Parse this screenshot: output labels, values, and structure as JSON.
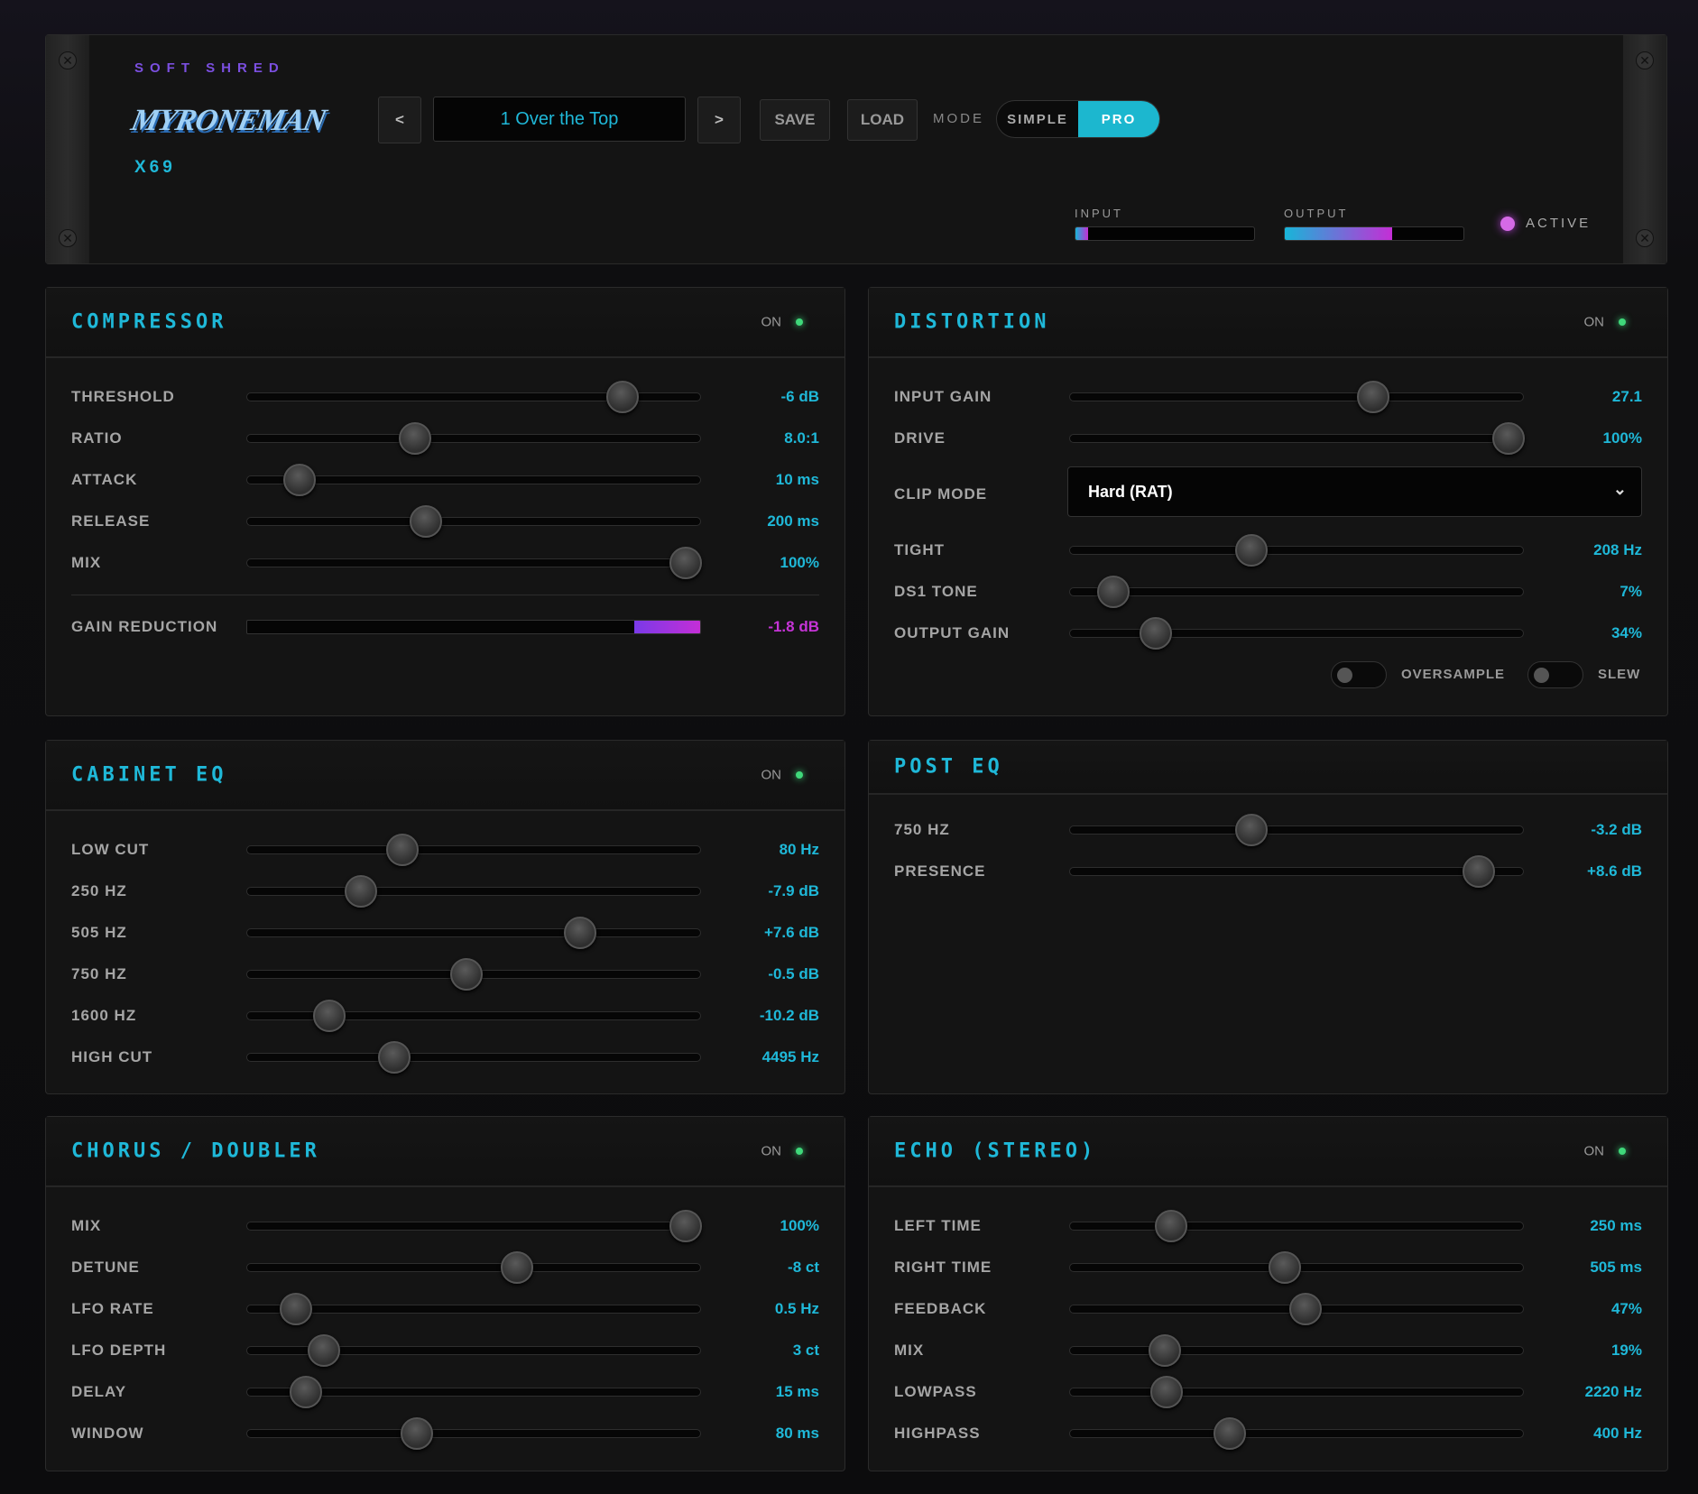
{
  "header": {
    "brand": "SOFT SHRED",
    "logo": "MYRONEMAN",
    "model": "X69",
    "prev_label": "<",
    "next_label": ">",
    "preset": "1 Over the Top",
    "save_label": "SAVE",
    "load_label": "LOAD",
    "mode_label": "MODE",
    "modes": [
      "SIMPLE",
      "PRO"
    ],
    "selected_mode": "PRO",
    "input_label": "INPUT",
    "output_label": "OUTPUT",
    "input_level": 0.07,
    "output_level": 0.6,
    "active_label": "ACTIVE",
    "colors": {
      "accent": "#1fb8d8",
      "brand": "#7b4fe0",
      "active": "#d56ae6",
      "on_led": "#3fd87a"
    }
  },
  "panels": [
    {
      "id": "compressor",
      "title": "COMPRESSOR",
      "on_label": "ON",
      "rows": [
        {
          "type": "slider",
          "label": "THRESHOLD",
          "value": "-6 dB",
          "pos": 0.85
        },
        {
          "type": "slider",
          "label": "RATIO",
          "value": "8.0:1",
          "pos": 0.36
        },
        {
          "type": "slider",
          "label": "ATTACK",
          "value": "10 ms",
          "pos": 0.085
        },
        {
          "type": "slider",
          "label": "RELEASE",
          "value": "200 ms",
          "pos": 0.385
        },
        {
          "type": "slider",
          "label": "MIX",
          "value": "100%",
          "pos": 1.0
        },
        {
          "type": "separator"
        },
        {
          "type": "meter",
          "label": "GAIN REDUCTION",
          "value": "-1.8 dB",
          "level": 0.145
        }
      ]
    },
    {
      "id": "distortion",
      "title": "DISTORTION",
      "on_label": "ON",
      "rows": [
        {
          "type": "slider",
          "label": "INPUT GAIN",
          "value": "27.1",
          "pos": 0.68
        },
        {
          "type": "slider",
          "label": "DRIVE",
          "value": "100%",
          "pos": 1.0
        },
        {
          "type": "select",
          "label": "CLIP MODE",
          "value": "Hard (RAT)"
        },
        {
          "type": "slider",
          "label": "TIGHT",
          "value": "208 Hz",
          "pos": 0.39
        },
        {
          "type": "slider",
          "label": "DS1 TONE",
          "value": "7%",
          "pos": 0.064
        },
        {
          "type": "slider",
          "label": "OUTPUT GAIN",
          "value": "34%",
          "pos": 0.164
        },
        {
          "type": "toggles",
          "items": [
            {
              "label": "OVERSAMPLE",
              "on": false
            },
            {
              "label": "SLEW",
              "on": false
            }
          ]
        }
      ]
    },
    {
      "id": "cabinet-eq",
      "title": "CABINET EQ",
      "on_label": "ON",
      "rows": [
        {
          "type": "slider",
          "label": "LOW CUT",
          "value": "80 Hz",
          "pos": 0.33
        },
        {
          "type": "slider",
          "label": "250 HZ",
          "value": "-7.9 dB",
          "pos": 0.23
        },
        {
          "type": "slider",
          "label": "505 HZ",
          "value": "+7.6 dB",
          "pos": 0.75
        },
        {
          "type": "slider",
          "label": "750 HZ",
          "value": "-0.5 dB",
          "pos": 0.48
        },
        {
          "type": "slider",
          "label": "1600 HZ",
          "value": "-10.2 dB",
          "pos": 0.156
        },
        {
          "type": "slider",
          "label": "HIGH CUT",
          "value": "4495 Hz",
          "pos": 0.31
        }
      ]
    },
    {
      "id": "post-eq",
      "title": "POST EQ",
      "rows": [
        {
          "type": "slider",
          "label": "750 HZ",
          "value": "-3.2 dB",
          "pos": 0.39
        },
        {
          "type": "slider",
          "label": "PRESENCE",
          "value": "+8.6 dB",
          "pos": 0.93
        }
      ]
    },
    {
      "id": "chorus",
      "title": "CHORUS / DOUBLER",
      "on_label": "ON",
      "rows": [
        {
          "type": "slider",
          "label": "MIX",
          "value": "100%",
          "pos": 1.0
        },
        {
          "type": "slider",
          "label": "DETUNE",
          "value": "-8 ct",
          "pos": 0.6
        },
        {
          "type": "slider",
          "label": "LFO RATE",
          "value": "0.5 Hz",
          "pos": 0.077
        },
        {
          "type": "slider",
          "label": "LFO DEPTH",
          "value": "3 ct",
          "pos": 0.144
        },
        {
          "type": "slider",
          "label": "DELAY",
          "value": "15 ms",
          "pos": 0.1
        },
        {
          "type": "slider",
          "label": "WINDOW",
          "value": "80 ms",
          "pos": 0.364
        }
      ]
    },
    {
      "id": "echo",
      "title": "ECHO (STEREO)",
      "on_label": "ON",
      "rows": [
        {
          "type": "slider",
          "label": "LEFT TIME",
          "value": "250 ms",
          "pos": 0.2
        },
        {
          "type": "slider",
          "label": "RIGHT TIME",
          "value": "505 ms",
          "pos": 0.47
        },
        {
          "type": "slider",
          "label": "FEEDBACK",
          "value": "47%",
          "pos": 0.52
        },
        {
          "type": "slider",
          "label": "MIX",
          "value": "19%",
          "pos": 0.185
        },
        {
          "type": "slider",
          "label": "LOWPASS",
          "value": "2220 Hz",
          "pos": 0.19
        },
        {
          "type": "slider",
          "label": "HIGHPASS",
          "value": "400 Hz",
          "pos": 0.34
        }
      ]
    }
  ]
}
